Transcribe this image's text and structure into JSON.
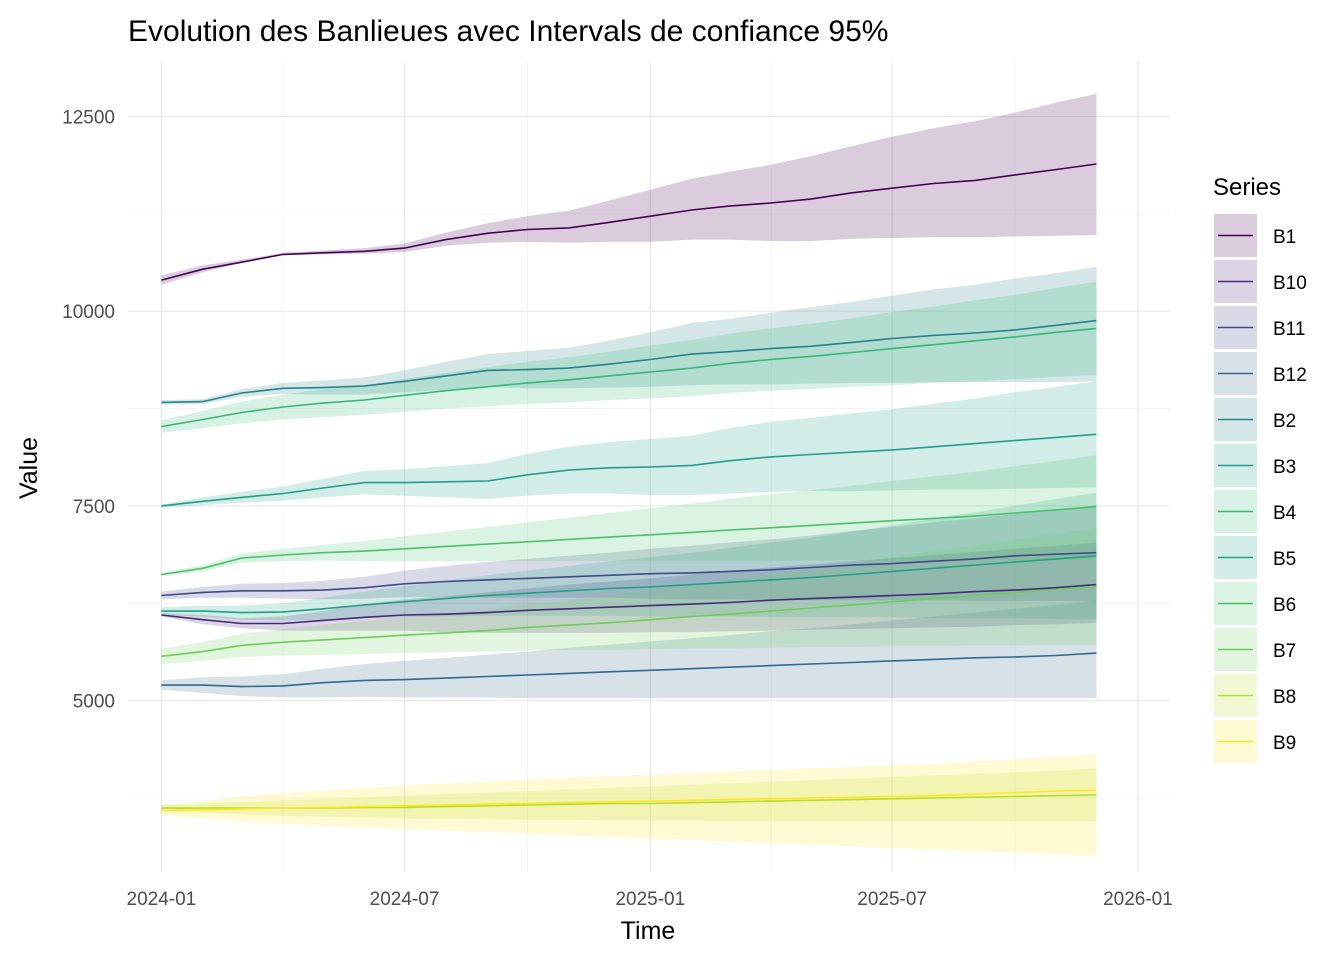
{
  "chart_data": {
    "type": "line",
    "title": "Evolution des Banlieues avec Intervals de confiance 95%",
    "xlabel": "Time",
    "ylabel": "Value",
    "x_ticks": [
      "2024-01",
      "2024-07",
      "2025-01",
      "2025-07",
      "2026-01"
    ],
    "y_ticks": [
      5000,
      7500,
      10000,
      12500
    ],
    "xlim": [
      "2023-12-07",
      "2026-01-25"
    ],
    "ylim": [
      2800,
      13200
    ],
    "grid": true,
    "legend": {
      "title": "Series",
      "position": "right"
    },
    "x": [
      "2024-01",
      "2024-02",
      "2024-03",
      "2024-04",
      "2024-05",
      "2024-06",
      "2024-07",
      "2024-08",
      "2024-09",
      "2024-10",
      "2024-11",
      "2024-12",
      "2025-01",
      "2025-02",
      "2025-03",
      "2025-04",
      "2025-05",
      "2025-06",
      "2025-07",
      "2025-08",
      "2025-09",
      "2025-10",
      "2025-11",
      "2025-12"
    ],
    "series": [
      {
        "name": "B1",
        "color": "#440154",
        "values": [
          10400,
          10540,
          10630,
          10730,
          10750,
          10770,
          10810,
          10920,
          11000,
          11050,
          11070,
          11140,
          11220,
          11300,
          11350,
          11390,
          11440,
          11520,
          11580,
          11640,
          11680,
          11750,
          11820,
          11890
        ],
        "lower": [
          10340,
          10500,
          10620,
          10720,
          10730,
          10740,
          10760,
          10840,
          10880,
          10890,
          10880,
          10890,
          10890,
          10920,
          10920,
          10900,
          10900,
          10930,
          10940,
          10950,
          10950,
          10960,
          10970,
          10980
        ],
        "upper": [
          10460,
          10590,
          10660,
          10750,
          10780,
          10810,
          10870,
          11010,
          11130,
          11220,
          11290,
          11420,
          11560,
          11700,
          11790,
          11880,
          11990,
          12120,
          12240,
          12350,
          12440,
          12550,
          12680,
          12790
        ]
      },
      {
        "name": "B10",
        "color": "#482878",
        "values": [
          6100,
          6040,
          5990,
          5990,
          6030,
          6070,
          6100,
          6110,
          6130,
          6160,
          6180,
          6200,
          6220,
          6240,
          6260,
          6290,
          6310,
          6330,
          6350,
          6370,
          6400,
          6420,
          6450,
          6490
        ],
        "lower": [
          6080,
          5980,
          5930,
          5900,
          5900,
          5900,
          5900,
          5880,
          5870,
          5870,
          5870,
          5870,
          5880,
          5880,
          5890,
          5900,
          5910,
          5920,
          5930,
          5940,
          5950,
          5970,
          5980,
          6000
        ],
        "upper": [
          6120,
          6100,
          6060,
          6080,
          6150,
          6240,
          6300,
          6340,
          6390,
          6440,
          6490,
          6530,
          6570,
          6620,
          6670,
          6710,
          6750,
          6790,
          6830,
          6870,
          6910,
          6950,
          6990,
          7030
        ]
      },
      {
        "name": "B11",
        "color": "#3E4A89",
        "values": [
          6350,
          6390,
          6410,
          6410,
          6420,
          6450,
          6500,
          6530,
          6550,
          6570,
          6590,
          6610,
          6630,
          6640,
          6660,
          6680,
          6710,
          6740,
          6760,
          6790,
          6820,
          6860,
          6880,
          6900
        ],
        "lower": [
          6300,
          6320,
          6320,
          6310,
          6300,
          6310,
          6330,
          6330,
          6320,
          6320,
          6320,
          6320,
          6310,
          6300,
          6300,
          6290,
          6290,
          6290,
          6290,
          6290,
          6280,
          6280,
          6280,
          6270
        ],
        "upper": [
          6400,
          6460,
          6500,
          6510,
          6540,
          6590,
          6670,
          6730,
          6780,
          6820,
          6860,
          6900,
          6950,
          6990,
          7030,
          7070,
          7120,
          7180,
          7230,
          7290,
          7340,
          7400,
          7450,
          7510
        ]
      },
      {
        "name": "B12",
        "color": "#31688E",
        "values": [
          5200,
          5200,
          5180,
          5190,
          5230,
          5260,
          5270,
          5290,
          5310,
          5330,
          5350,
          5370,
          5390,
          5410,
          5430,
          5450,
          5470,
          5490,
          5510,
          5530,
          5550,
          5560,
          5580,
          5610
        ],
        "lower": [
          5140,
          5100,
          5060,
          5040,
          5040,
          5050,
          5040,
          5040,
          5040,
          5030,
          5030,
          5030,
          5030,
          5030,
          5030,
          5030,
          5030,
          5030,
          5030,
          5030,
          5030,
          5030,
          5030,
          5030
        ],
        "upper": [
          5260,
          5300,
          5310,
          5340,
          5410,
          5470,
          5510,
          5550,
          5590,
          5630,
          5680,
          5720,
          5760,
          5800,
          5840,
          5890,
          5930,
          5980,
          6030,
          6080,
          6130,
          6180,
          6230,
          6280
        ]
      },
      {
        "name": "B2",
        "color": "#26828E",
        "values": [
          8830,
          8840,
          8950,
          9010,
          9020,
          9040,
          9100,
          9170,
          9240,
          9250,
          9270,
          9320,
          9380,
          9450,
          9480,
          9520,
          9550,
          9600,
          9650,
          9690,
          9720,
          9760,
          9820,
          9880
        ],
        "lower": [
          8800,
          8810,
          8900,
          8940,
          8930,
          8930,
          8960,
          8990,
          9030,
          9010,
          9010,
          9020,
          9030,
          9050,
          9060,
          9060,
          9070,
          9080,
          9080,
          9090,
          9090,
          9090,
          9090,
          9100
        ],
        "upper": [
          8860,
          8870,
          9000,
          9080,
          9110,
          9150,
          9240,
          9350,
          9450,
          9490,
          9530,
          9620,
          9730,
          9850,
          9900,
          9980,
          10050,
          10120,
          10200,
          10280,
          10340,
          10420,
          10490,
          10570
        ]
      },
      {
        "name": "B3",
        "color": "#1F9E89",
        "values": [
          7500,
          7560,
          7610,
          7660,
          7730,
          7800,
          7800,
          7810,
          7820,
          7900,
          7960,
          7990,
          8000,
          8020,
          8080,
          8130,
          8160,
          8190,
          8220,
          8260,
          8300,
          8340,
          8380,
          8420
        ],
        "lower": [
          7480,
          7510,
          7540,
          7570,
          7610,
          7650,
          7630,
          7610,
          7590,
          7630,
          7660,
          7660,
          7640,
          7640,
          7660,
          7680,
          7690,
          7690,
          7700,
          7710,
          7710,
          7720,
          7730,
          7740
        ],
        "upper": [
          7520,
          7610,
          7680,
          7750,
          7850,
          7950,
          7970,
          8010,
          8050,
          8170,
          8260,
          8320,
          8360,
          8400,
          8500,
          8580,
          8630,
          8690,
          8740,
          8810,
          8880,
          8960,
          9030,
          9100
        ]
      },
      {
        "name": "B4",
        "color": "#35B779",
        "values": [
          8520,
          8610,
          8700,
          8770,
          8820,
          8860,
          8920,
          8980,
          9030,
          9080,
          9120,
          9170,
          9220,
          9270,
          9330,
          9380,
          9420,
          9470,
          9520,
          9570,
          9620,
          9670,
          9730,
          9780
        ],
        "lower": [
          8440,
          8500,
          8560,
          8610,
          8640,
          8670,
          8710,
          8750,
          8780,
          8810,
          8830,
          8860,
          8880,
          8910,
          8950,
          8980,
          9000,
          9030,
          9050,
          9080,
          9100,
          9130,
          9160,
          9180
        ],
        "upper": [
          8600,
          8720,
          8840,
          8930,
          9000,
          9050,
          9130,
          9210,
          9280,
          9350,
          9410,
          9480,
          9560,
          9630,
          9710,
          9780,
          9840,
          9910,
          9990,
          10060,
          10140,
          10210,
          10300,
          10380
        ]
      },
      {
        "name": "B5",
        "color": "#1FA187",
        "values": [
          6150,
          6150,
          6130,
          6140,
          6180,
          6230,
          6270,
          6310,
          6350,
          6380,
          6410,
          6440,
          6460,
          6490,
          6520,
          6550,
          6580,
          6620,
          6660,
          6700,
          6740,
          6780,
          6820,
          6860
        ],
        "lower": [
          6100,
          6080,
          6040,
          6030,
          6040,
          6060,
          6070,
          6080,
          6090,
          6090,
          6090,
          6090,
          6080,
          6080,
          6080,
          6070,
          6070,
          6070,
          6070,
          6060,
          6060,
          6060,
          6050,
          6050
        ],
        "upper": [
          6200,
          6220,
          6220,
          6250,
          6320,
          6400,
          6470,
          6540,
          6610,
          6670,
          6730,
          6790,
          6840,
          6900,
          6960,
          7030,
          7090,
          7170,
          7250,
          7340,
          7420,
          7500,
          7590,
          7670
        ]
      },
      {
        "name": "B6",
        "color": "#4AC16D",
        "values": [
          6620,
          6700,
          6830,
          6870,
          6900,
          6920,
          6950,
          6980,
          7010,
          7040,
          7070,
          7100,
          7130,
          7160,
          7190,
          7220,
          7250,
          7280,
          7310,
          7340,
          7370,
          7410,
          7450,
          7490
        ],
        "lower": [
          6600,
          6660,
          6770,
          6790,
          6800,
          6790,
          6790,
          6790,
          6790,
          6790,
          6790,
          6790,
          6790,
          6790,
          6790,
          6790,
          6800,
          6800,
          6800,
          6800,
          6800,
          6810,
          6810,
          6810
        ],
        "upper": [
          6640,
          6740,
          6890,
          6950,
          7000,
          7050,
          7110,
          7170,
          7230,
          7290,
          7350,
          7410,
          7470,
          7530,
          7590,
          7650,
          7700,
          7760,
          7820,
          7880,
          7940,
          8010,
          8080,
          8150
        ]
      },
      {
        "name": "B7",
        "color": "#6DCD59",
        "values": [
          5570,
          5630,
          5710,
          5750,
          5780,
          5810,
          5840,
          5870,
          5900,
          5940,
          5970,
          6000,
          6040,
          6080,
          6110,
          6150,
          6190,
          6230,
          6270,
          6310,
          6350,
          6390,
          6430,
          6470
        ],
        "lower": [
          5470,
          5510,
          5560,
          5580,
          5590,
          5600,
          5610,
          5620,
          5630,
          5640,
          5650,
          5650,
          5660,
          5670,
          5670,
          5680,
          5690,
          5690,
          5700,
          5700,
          5710,
          5710,
          5720,
          5720
        ],
        "upper": [
          5670,
          5750,
          5860,
          5920,
          5970,
          6020,
          6070,
          6120,
          6170,
          6240,
          6290,
          6350,
          6420,
          6490,
          6550,
          6620,
          6690,
          6770,
          6840,
          6920,
          6990,
          7070,
          7140,
          7220
        ]
      },
      {
        "name": "B8",
        "color": "#B4DE2C",
        "values": [
          3620,
          3620,
          3620,
          3620,
          3620,
          3630,
          3630,
          3640,
          3650,
          3660,
          3670,
          3680,
          3680,
          3690,
          3700,
          3710,
          3720,
          3730,
          3740,
          3750,
          3760,
          3770,
          3780,
          3790
        ],
        "lower": [
          3580,
          3560,
          3540,
          3520,
          3510,
          3500,
          3490,
          3480,
          3480,
          3470,
          3470,
          3460,
          3460,
          3460,
          3450,
          3450,
          3450,
          3450,
          3450,
          3450,
          3450,
          3450,
          3450,
          3450
        ],
        "upper": [
          3660,
          3680,
          3700,
          3720,
          3740,
          3760,
          3780,
          3800,
          3820,
          3840,
          3860,
          3880,
          3900,
          3920,
          3940,
          3960,
          3980,
          4000,
          4020,
          4040,
          4060,
          4080,
          4100,
          4130
        ]
      },
      {
        "name": "B9",
        "color": "#FDE725",
        "values": [
          3590,
          3600,
          3610,
          3620,
          3630,
          3640,
          3650,
          3660,
          3670,
          3680,
          3690,
          3700,
          3710,
          3720,
          3730,
          3740,
          3750,
          3760,
          3770,
          3780,
          3800,
          3820,
          3840,
          3850
        ],
        "lower": [
          3530,
          3490,
          3450,
          3420,
          3390,
          3370,
          3350,
          3330,
          3310,
          3290,
          3270,
          3250,
          3230,
          3210,
          3190,
          3170,
          3150,
          3130,
          3110,
          3090,
          3070,
          3050,
          3030,
          3010
        ],
        "upper": [
          3650,
          3710,
          3770,
          3810,
          3850,
          3880,
          3910,
          3940,
          3960,
          3990,
          4010,
          4030,
          4050,
          4070,
          4090,
          4110,
          4130,
          4150,
          4170,
          4190,
          4220,
          4250,
          4280,
          4310
        ]
      }
    ]
  }
}
